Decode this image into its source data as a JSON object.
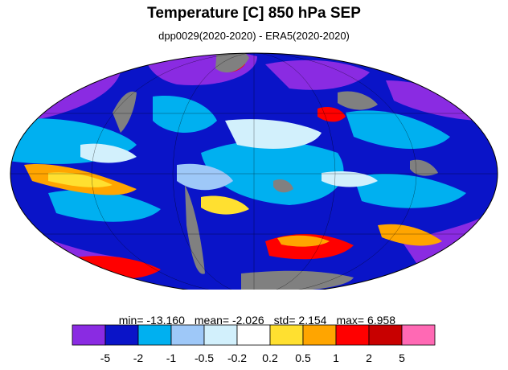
{
  "title": "Temperature [C] 850 hPa SEP",
  "subtitle": "dpp0029(2020-2020) - ERA5(2020-2020)",
  "stats": {
    "min": "min= -13.160",
    "mean": "mean= -2.026",
    "std": "std= 2.154",
    "max": "max= 6.958"
  },
  "colorbar": {
    "colors": [
      "#8a2be2",
      "#0a14c8",
      "#00b0f0",
      "#9ec8f8",
      "#d2f0fc",
      "#ffffff",
      "#ffe030",
      "#ffa500",
      "#ff0000",
      "#c80000",
      "#ff69b4"
    ],
    "tick_labels": [
      "-5",
      "-2",
      "-1",
      "-0.5",
      "-0.2",
      "0.2",
      "0.5",
      "1",
      "2",
      "5"
    ]
  },
  "map": {
    "projection": "Mollweide",
    "land_mask_color": "#808080",
    "background_color": "#0a14c8"
  }
}
